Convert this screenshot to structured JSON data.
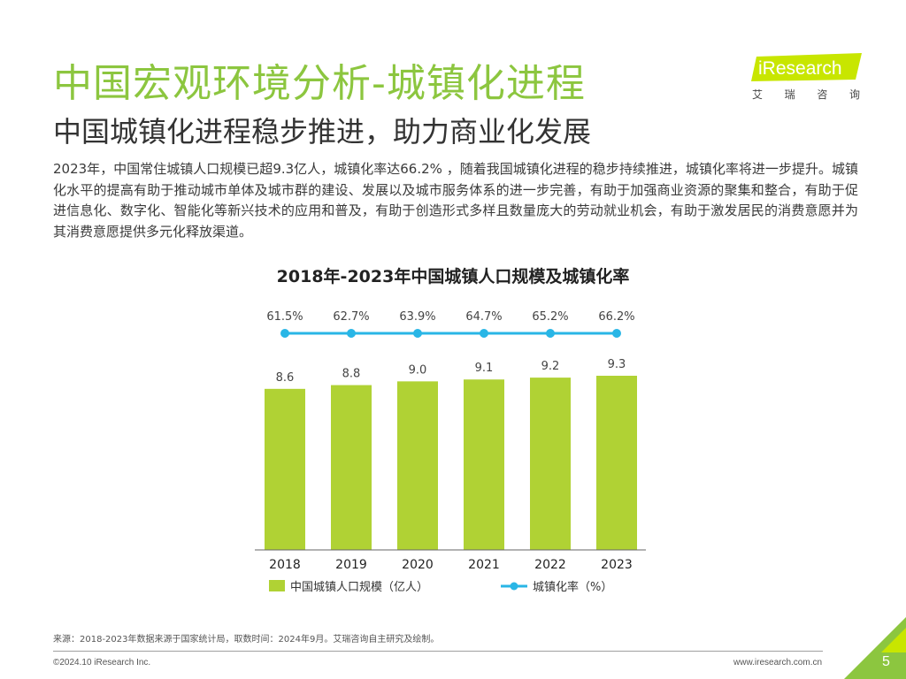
{
  "header": {
    "title": "中国宏观环境分析-城镇化进程",
    "subtitle": "中国城镇化进程稳步推进，助力商业化发展"
  },
  "logo": {
    "wordmark": "iResearch",
    "cn_chars": [
      "艾",
      "瑞",
      "咨",
      "询"
    ],
    "accent_color": "#c8e600"
  },
  "body": {
    "paragraph": "2023年，中国常住城镇人口规模已超9.3亿人，城镇化率达66.2% ，随着我国城镇化进程的稳步持续推进，城镇化率将进一步提升。城镇化水平的提高有助于推动城市单体及城市群的建设、发展以及城市服务体系的进一步完善，有助于加强商业资源的聚集和整合，有助于促进信息化、数字化、智能化等新兴技术的应用和普及，有助于创造形式多样且数量庞大的劳动就业机会，有助于激发居民的消费意愿并为其消费意愿提供多元化释放渠道。"
  },
  "chart_data": {
    "type": "bar",
    "title": "2018年-2023年中国城镇人口规模及城镇化率",
    "categories": [
      "2018",
      "2019",
      "2020",
      "2021",
      "2022",
      "2023"
    ],
    "series": [
      {
        "name": "中国城镇人口规模（亿人）",
        "type": "bar",
        "values": [
          8.6,
          8.8,
          9.0,
          9.1,
          9.2,
          9.3
        ],
        "labels": [
          "8.6",
          "8.8",
          "9.0",
          "9.1",
          "9.2",
          "9.3"
        ],
        "color": "#b0d234"
      },
      {
        "name": "城镇化率（%）",
        "type": "line",
        "values": [
          61.5,
          62.7,
          63.9,
          64.7,
          65.2,
          66.2
        ],
        "labels": [
          "61.5%",
          "62.7%",
          "63.9%",
          "64.7%",
          "65.2%",
          "66.2%"
        ],
        "color": "#29b6e6"
      }
    ],
    "legend_position": "bottom",
    "grid": false
  },
  "footer": {
    "source": "来源：2018-2023年数据来源于国家统计局，取数时间：2024年9月。艾瑞咨询自主研究及绘制。",
    "copyright": "©2024.10 iResearch Inc.",
    "website": "www.iresearch.com.cn",
    "page_number": "5"
  },
  "colors": {
    "title_green": "#8cc63f",
    "bar_green": "#b0d234",
    "line_blue": "#29b6e6",
    "corner_green": "#8cc63f",
    "corner_lime": "#c8e600"
  }
}
